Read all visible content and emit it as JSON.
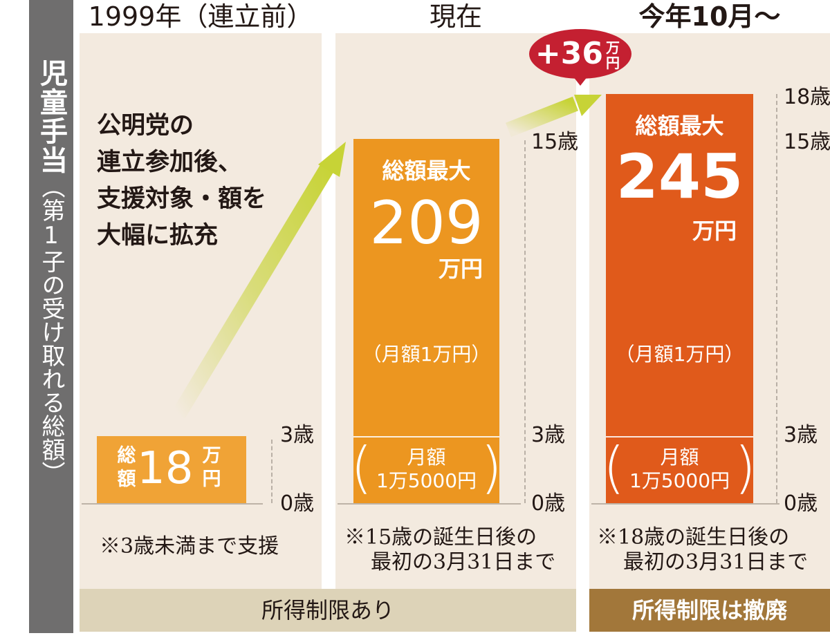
{
  "side_label": {
    "main": "児童手当",
    "sub": "（第1子の受け取れる総額）"
  },
  "annotation": [
    "公明党の",
    "連立参加後、",
    "支援対象・額を",
    "大幅に拡充"
  ],
  "increase_badge": {
    "value": "+36",
    "unit": "万円"
  },
  "columns": [
    {
      "header": "1999年（連立前）",
      "bar_label": "総額",
      "bar_label_chars": [
        "総",
        "額"
      ],
      "total_text": "18",
      "unit": "万円",
      "unit_chars": [
        "万",
        "円"
      ],
      "note": [
        "※3歳未満まで支援"
      ]
    },
    {
      "header": "現在",
      "bar_label": "総額最大",
      "total_text": "209",
      "unit": "万円",
      "monthly_upper": "（月額1万円）",
      "monthly_lower": {
        "label": "月額",
        "amount": "1万5000円"
      },
      "note": [
        "※15歳の誕生日後の",
        "最初の3月31日まで"
      ]
    },
    {
      "header": "今年10月～",
      "bar_label": "総額最大",
      "total_text": "245",
      "unit": "万円",
      "monthly_upper": "（月額1万円）",
      "monthly_lower": {
        "label": "月額",
        "amount": "1万5000円"
      },
      "note": [
        "※18歳の誕生日後の",
        "最初の3月31日まで"
      ]
    }
  ],
  "age_ticks": [
    [
      "0歳",
      "3歳"
    ],
    [
      "0歳",
      "3歳",
      "15歳"
    ],
    [
      "0歳",
      "3歳",
      "15歳",
      "18歳"
    ]
  ],
  "income_limit_bands": [
    {
      "label": "所得制限あり",
      "color": "#ddd3b8"
    },
    {
      "label": "所得制限は撤廃",
      "color": "#a2773a"
    }
  ],
  "colors": {
    "bar_1999": "#f0a336",
    "bar_current": "#ec9620",
    "bar_new": "#e05a1b",
    "badge": "#c42031",
    "arrow": "#c7d336"
  },
  "chart_data": {
    "type": "bar",
    "title": "児童手当（第1子の受け取れる総額）",
    "categories": [
      "1999年（連立前）",
      "現在",
      "今年10月～"
    ],
    "series": [
      {
        "values": [
          18,
          209,
          245
        ]
      }
    ],
    "value_unit": "万円",
    "max_age_years": [
      3,
      15,
      18
    ],
    "age_axis_ticks": [
      [
        "0歳",
        "3歳"
      ],
      [
        "0歳",
        "3歳",
        "15歳"
      ],
      [
        "0歳",
        "3歳",
        "15歳",
        "18歳"
      ]
    ],
    "monthly_amounts": {
      "under_3": "1万5000円",
      "3_and_over": "1万円"
    },
    "increase": "+36万円",
    "ylim_age": [
      0,
      18
    ],
    "grid": false,
    "legend": "none"
  }
}
